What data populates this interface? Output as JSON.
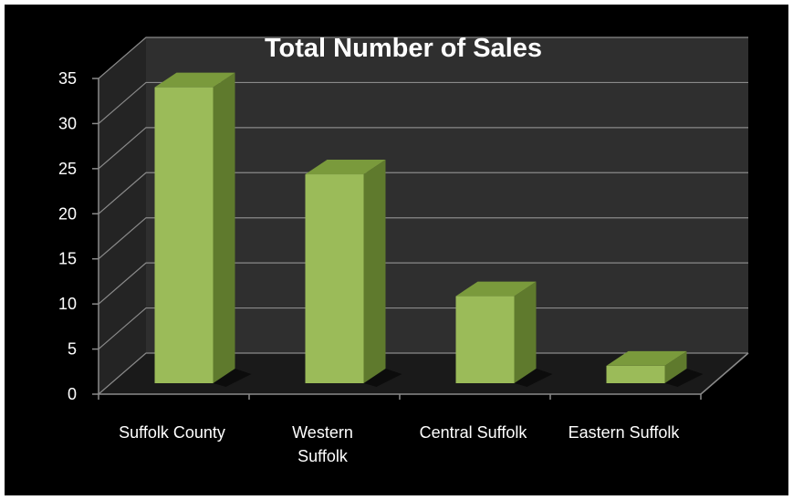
{
  "chart_data": {
    "type": "bar",
    "title": "Total Number of Sales",
    "categories": [
      "Suffolk County",
      "Western Suffolk",
      "Central Suffolk",
      "Eastern Suffolk"
    ],
    "category_lines": [
      [
        "Suffolk County"
      ],
      [
        "Western",
        "Suffolk"
      ],
      [
        "Central Suffolk"
      ],
      [
        "Eastern Suffolk"
      ]
    ],
    "values": [
      34,
      24,
      10,
      2
    ],
    "ylim": [
      0,
      35
    ],
    "yticks": [
      "0",
      "5",
      "10",
      "15",
      "20",
      "25",
      "30",
      "35"
    ],
    "grid": true,
    "style": "3d-column",
    "colors": {
      "background": "#000000",
      "wall": "#2f2f2f",
      "floor": "#1a1a1a",
      "gridline": "#8a8a8a",
      "bar_front": "#9bbb59",
      "bar_top": "#7a9a3c",
      "bar_side": "#5f7a2d",
      "text": "#ffffff"
    }
  }
}
